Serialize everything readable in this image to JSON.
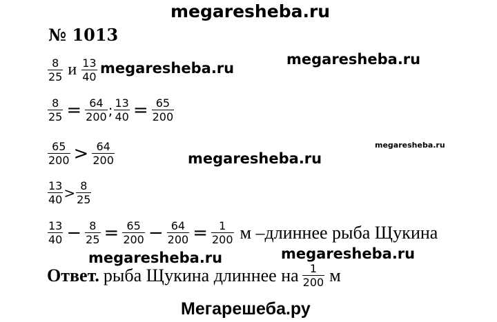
{
  "watermark": "megaresheba.ru",
  "watermark_small": "megaresheba.ru",
  "footer": "Мегарешеба.ру",
  "task_number": "№ 1013",
  "line1": {
    "n1": "8",
    "d1": "25",
    "word": "и",
    "n2": "13",
    "d2": "40"
  },
  "line2": {
    "n1": "8",
    "d1": "25",
    "eq1": "=",
    "n2": "64",
    "d2": "200",
    "sep": ";",
    "n3": "13",
    "d3": "40",
    "eq2": "=",
    "n4": "65",
    "d4": "200"
  },
  "line3": {
    "n1": "65",
    "d1": "200",
    "op": ">",
    "n2": "64",
    "d2": "200"
  },
  "line4": {
    "n1": "13",
    "d1": "40",
    "op": ">",
    "n2": "8",
    "d2": "25"
  },
  "line5": {
    "n1": "13",
    "d1": "40",
    "minus1": "−",
    "n2": "8",
    "d2": "25",
    "eq1": "=",
    "n3": "65",
    "d3": "200",
    "minus2": "−",
    "n4": "64",
    "d4": "200",
    "eq2": "=",
    "n5": "1",
    "d5": "200",
    "tail": "м –длиннее рыба Щукина"
  },
  "answer": {
    "label": "Ответ.",
    "text": "рыба Щукина длиннее на",
    "num": "1",
    "den": "200",
    "unit": "м"
  }
}
